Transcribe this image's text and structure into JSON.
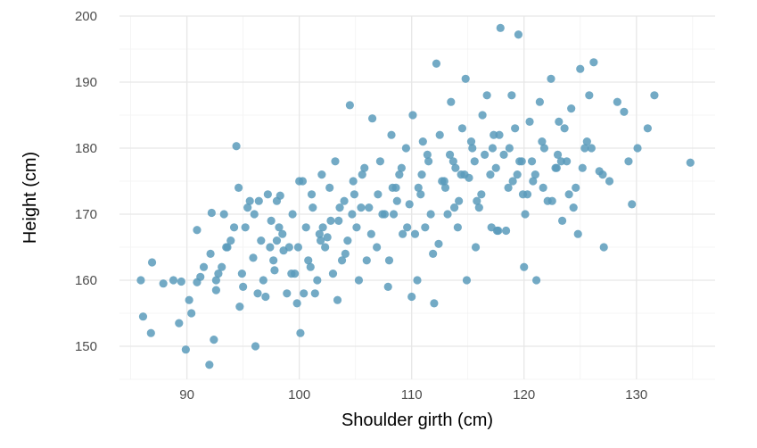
{
  "chart_data": {
    "type": "scatter",
    "title": "",
    "xlabel": "Shoulder girth (cm)",
    "ylabel": "Height (cm)",
    "xlim": [
      84,
      137
    ],
    "ylim": [
      145,
      200
    ],
    "x_ticks": [
      90,
      100,
      110,
      120,
      130
    ],
    "y_ticks": [
      150,
      160,
      170,
      180,
      190,
      200
    ],
    "grid": true,
    "point_color": "#5b9bbb",
    "x": [
      85.9,
      86.1,
      86.8,
      86.9,
      87.9,
      88.8,
      89.3,
      89.5,
      89.9,
      90.2,
      90.4,
      90.9,
      90.9,
      91.2,
      92.0,
      92.1,
      92.2,
      92.4,
      92.6,
      92.6,
      93.1,
      93.3,
      93.6,
      94.4,
      94.6,
      94.7,
      94.9,
      95.2,
      95.6,
      95.9,
      96.1,
      96.3,
      96.6,
      97.0,
      97.2,
      97.5,
      97.8,
      98.0,
      98.3,
      98.6,
      98.9,
      99.1,
      99.4,
      99.8,
      100.1,
      100.3,
      100.6,
      100.8,
      101.0,
      101.2,
      101.4,
      101.8,
      102.0,
      102.3,
      102.7,
      103.0,
      103.2,
      103.5,
      103.8,
      104.0,
      104.3,
      104.5,
      104.8,
      105.1,
      105.3,
      105.8,
      106.2,
      106.5,
      106.9,
      107.2,
      107.6,
      108.0,
      108.2,
      108.6,
      108.9,
      109.2,
      109.5,
      109.8,
      110.1,
      110.5,
      110.8,
      111.2,
      111.5,
      111.9,
      112.2,
      112.5,
      112.9,
      113.2,
      113.5,
      113.9,
      114.2,
      114.5,
      114.8,
      115.1,
      115.4,
      115.7,
      116.0,
      116.3,
      116.7,
      117.0,
      117.3,
      117.6,
      117.9,
      118.2,
      118.6,
      118.9,
      119.2,
      119.5,
      119.8,
      120.1,
      120.5,
      120.8,
      121.1,
      121.4,
      121.8,
      122.1,
      122.4,
      122.8,
      123.1,
      123.4,
      123.8,
      124.2,
      124.6,
      125.0,
      125.4,
      125.8,
      126.2,
      126.7,
      127.1,
      127.6,
      128.3,
      128.9,
      129.3,
      129.6,
      130.1,
      131.0,
      131.6,
      134.8,
      92.8,
      93.9,
      95.0,
      96.4,
      97.7,
      98.2,
      99.6,
      100.0,
      101.6,
      102.5,
      103.4,
      104.7,
      105.6,
      106.0,
      107.0,
      107.9,
      108.4,
      109.1,
      110.3,
      111.0,
      111.7,
      112.4,
      113.0,
      113.7,
      114.1,
      114.7,
      115.3,
      115.8,
      116.5,
      117.1,
      117.8,
      118.4,
      119.0,
      119.6,
      120.3,
      121.0,
      121.6,
      122.5,
      123.0,
      123.6,
      124.4,
      125.2,
      126.0,
      127.0,
      91.5,
      93.5,
      94.2,
      95.4,
      96.8,
      97.4,
      98.5,
      99.3,
      100.4,
      101.1,
      101.9,
      102.8,
      103.6,
      104.9,
      106.4,
      107.4,
      108.7,
      109.6,
      110.6,
      111.4,
      112.7,
      113.4,
      114.4,
      115.6,
      116.2,
      117.5,
      118.7,
      119.4,
      120.7,
      121.7,
      122.9,
      124.0,
      125.6,
      96.0,
      98.0,
      99.9,
      102.1,
      104.1,
      105.5,
      108.3,
      110.9,
      113.8,
      117.2,
      119.9,
      123.3,
      110.0,
      112.0,
      114.9,
      117.7,
      120.0,
      124.8
    ],
    "y": [
      160.0,
      154.5,
      152.0,
      162.7,
      159.5,
      160.0,
      153.5,
      159.8,
      149.5,
      157.0,
      155.0,
      159.7,
      167.6,
      160.5,
      147.2,
      164.0,
      170.2,
      151.0,
      160.0,
      158.5,
      162.0,
      170.0,
      165.0,
      180.3,
      174.0,
      156.0,
      161.0,
      168.0,
      172.0,
      163.4,
      150.0,
      158.0,
      166.0,
      157.5,
      173.0,
      169.0,
      161.5,
      166.0,
      172.8,
      164.5,
      158.0,
      165.0,
      170.0,
      156.5,
      152.0,
      175.0,
      168.0,
      163.0,
      162.0,
      171.0,
      158.0,
      167.0,
      176.0,
      165.0,
      174.0,
      161.0,
      178.0,
      169.0,
      163.0,
      172.0,
      166.0,
      186.5,
      175.0,
      168.0,
      160.0,
      177.0,
      171.0,
      184.5,
      165.0,
      178.0,
      170.0,
      163.0,
      182.0,
      174.0,
      176.0,
      167.0,
      180.0,
      171.5,
      185.0,
      160.0,
      173.0,
      168.0,
      178.0,
      164.0,
      192.8,
      182.0,
      175.0,
      170.0,
      187.0,
      177.0,
      172.0,
      183.0,
      190.5,
      175.5,
      180.0,
      165.0,
      171.0,
      185.0,
      188.0,
      176.0,
      182.0,
      167.5,
      198.2,
      179.0,
      174.0,
      188.0,
      183.0,
      197.2,
      178.0,
      170.0,
      184.0,
      175.0,
      160.0,
      187.0,
      180.0,
      172.0,
      190.5,
      177.0,
      184.0,
      169.0,
      178.0,
      186.0,
      174.0,
      192.0,
      180.0,
      188.0,
      193.0,
      176.5,
      165.0,
      175.0,
      187.0,
      185.5,
      178.0,
      171.5,
      180.0,
      183.0,
      188.0,
      177.8,
      161.0,
      166.0,
      159.0,
      172.0,
      163.0,
      168.0,
      161.0,
      175.0,
      160.0,
      166.5,
      157.0,
      170.0,
      176.0,
      163.0,
      173.0,
      159.0,
      170.0,
      177.0,
      167.0,
      181.0,
      170.0,
      165.5,
      174.0,
      178.0,
      168.0,
      176.0,
      181.0,
      172.0,
      179.0,
      168.0,
      182.0,
      167.5,
      175.0,
      178.0,
      173.0,
      176.0,
      181.0,
      172.0,
      179.0,
      183.0,
      171.0,
      177.0,
      180.0,
      176.0,
      162.0,
      165.0,
      168.0,
      171.0,
      160.0,
      165.0,
      167.0,
      161.0,
      158.0,
      173.0,
      166.0,
      169.0,
      171.0,
      173.0,
      167.0,
      170.0,
      172.0,
      168.0,
      174.0,
      179.0,
      175.0,
      179.0,
      176.0,
      178.0,
      173.0,
      177.0,
      180.0,
      176.0,
      178.0,
      174.0,
      177.0,
      173.0,
      181.0,
      170.0,
      172.0,
      165.0,
      168.0,
      164.0,
      171.0,
      174.0,
      176.0,
      171.0,
      180.0,
      173.0,
      178.0,
      157.5,
      156.5,
      160.0,
      167.5,
      162.0,
      167.0
    ]
  }
}
